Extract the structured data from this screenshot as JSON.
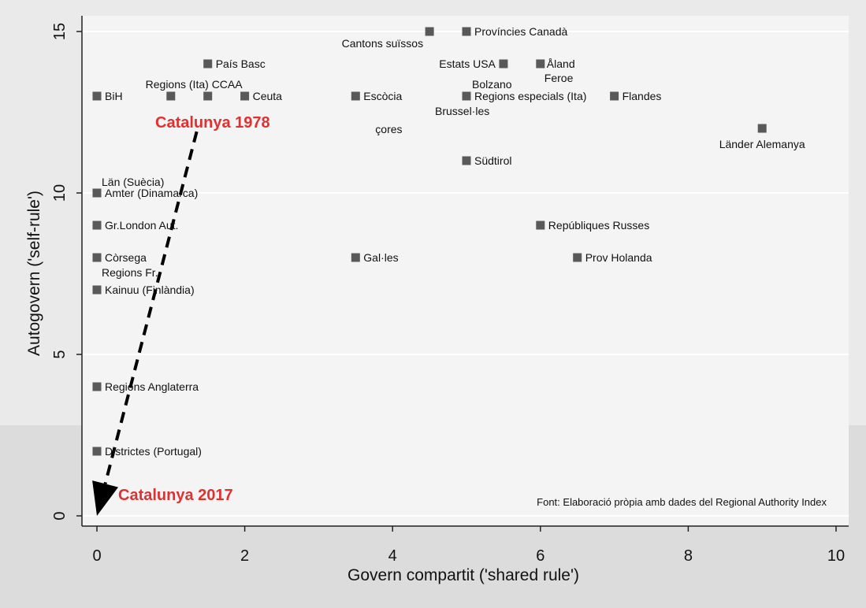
{
  "chart_data": {
    "type": "scatter",
    "xlabel": "Govern compartit ('shared rule')",
    "ylabel": "Autogovern ('self-rule')",
    "xlim": [
      0,
      10
    ],
    "ylim": [
      0,
      15
    ],
    "xticks": [
      "0",
      "2",
      "4",
      "6",
      "8",
      "10"
    ],
    "yticks": [
      "0",
      "5",
      "10",
      "15"
    ],
    "grid": "horizontal",
    "marker_color": "#595959",
    "points": [
      {
        "label": "Cantons suïssos",
        "x": 4.5,
        "y": 15
      },
      {
        "label": "Províncies Canadà",
        "x": 5,
        "y": 15
      },
      {
        "label": "País Basc",
        "x": 1.5,
        "y": 14
      },
      {
        "label": "Estats USA",
        "x": 5.5,
        "y": 14
      },
      {
        "label": "Åland",
        "x": 6,
        "y": 14
      },
      {
        "label": "Feroe",
        "x": 6,
        "y": 14
      },
      {
        "label": "BiH",
        "x": 0,
        "y": 13
      },
      {
        "label": "Regions (Ita)",
        "x": 1,
        "y": 13
      },
      {
        "label": "CCAA",
        "x": 1.5,
        "y": 13
      },
      {
        "label": "Ceuta",
        "x": 2,
        "y": 13
      },
      {
        "label": "Escòcia",
        "x": 3.5,
        "y": 13
      },
      {
        "label": "Bolzano",
        "x": 5,
        "y": 13
      },
      {
        "label": "Regions especials (Ita)",
        "x": 5,
        "y": 13
      },
      {
        "label": "Brussel·les",
        "x": 5,
        "y": 13
      },
      {
        "label": "Flandes",
        "x": 7,
        "y": 13
      },
      {
        "label": "çores",
        "x": 3.5,
        "y": 13
      },
      {
        "label": "Länder Alemanya",
        "x": 9,
        "y": 12
      },
      {
        "label": "Südtirol",
        "x": 5,
        "y": 11
      },
      {
        "label": "Län (Suècia)",
        "x": 0,
        "y": 10
      },
      {
        "label": "Amter (Dinamarca)",
        "x": 0,
        "y": 10
      },
      {
        "label": "Gr.London Aut.",
        "x": 0,
        "y": 9
      },
      {
        "label": "Repúbliques Russes",
        "x": 6,
        "y": 9
      },
      {
        "label": "Còrsega",
        "x": 0,
        "y": 8
      },
      {
        "label": "Regions Fr.",
        "x": 0,
        "y": 8
      },
      {
        "label": "Gal·les",
        "x": 3.5,
        "y": 8
      },
      {
        "label": "Prov Holanda",
        "x": 6.5,
        "y": 8
      },
      {
        "label": "Kainuu (Finlàndia)",
        "x": 0,
        "y": 7
      },
      {
        "label": "Regions Anglaterra",
        "x": 0,
        "y": 4
      },
      {
        "label": "Districtes (Portugal)",
        "x": 0,
        "y": 2
      }
    ],
    "annotations": {
      "start_label": "Catalunya 1978",
      "end_label": "Catalunya 2017",
      "arrow_from": {
        "x": 1.35,
        "y": 11.9
      },
      "arrow_to": {
        "x": 0,
        "y": 0
      },
      "color": "#e03131"
    },
    "source": "Font: Elaboració pròpia amb dades del Regional Authority Index"
  }
}
